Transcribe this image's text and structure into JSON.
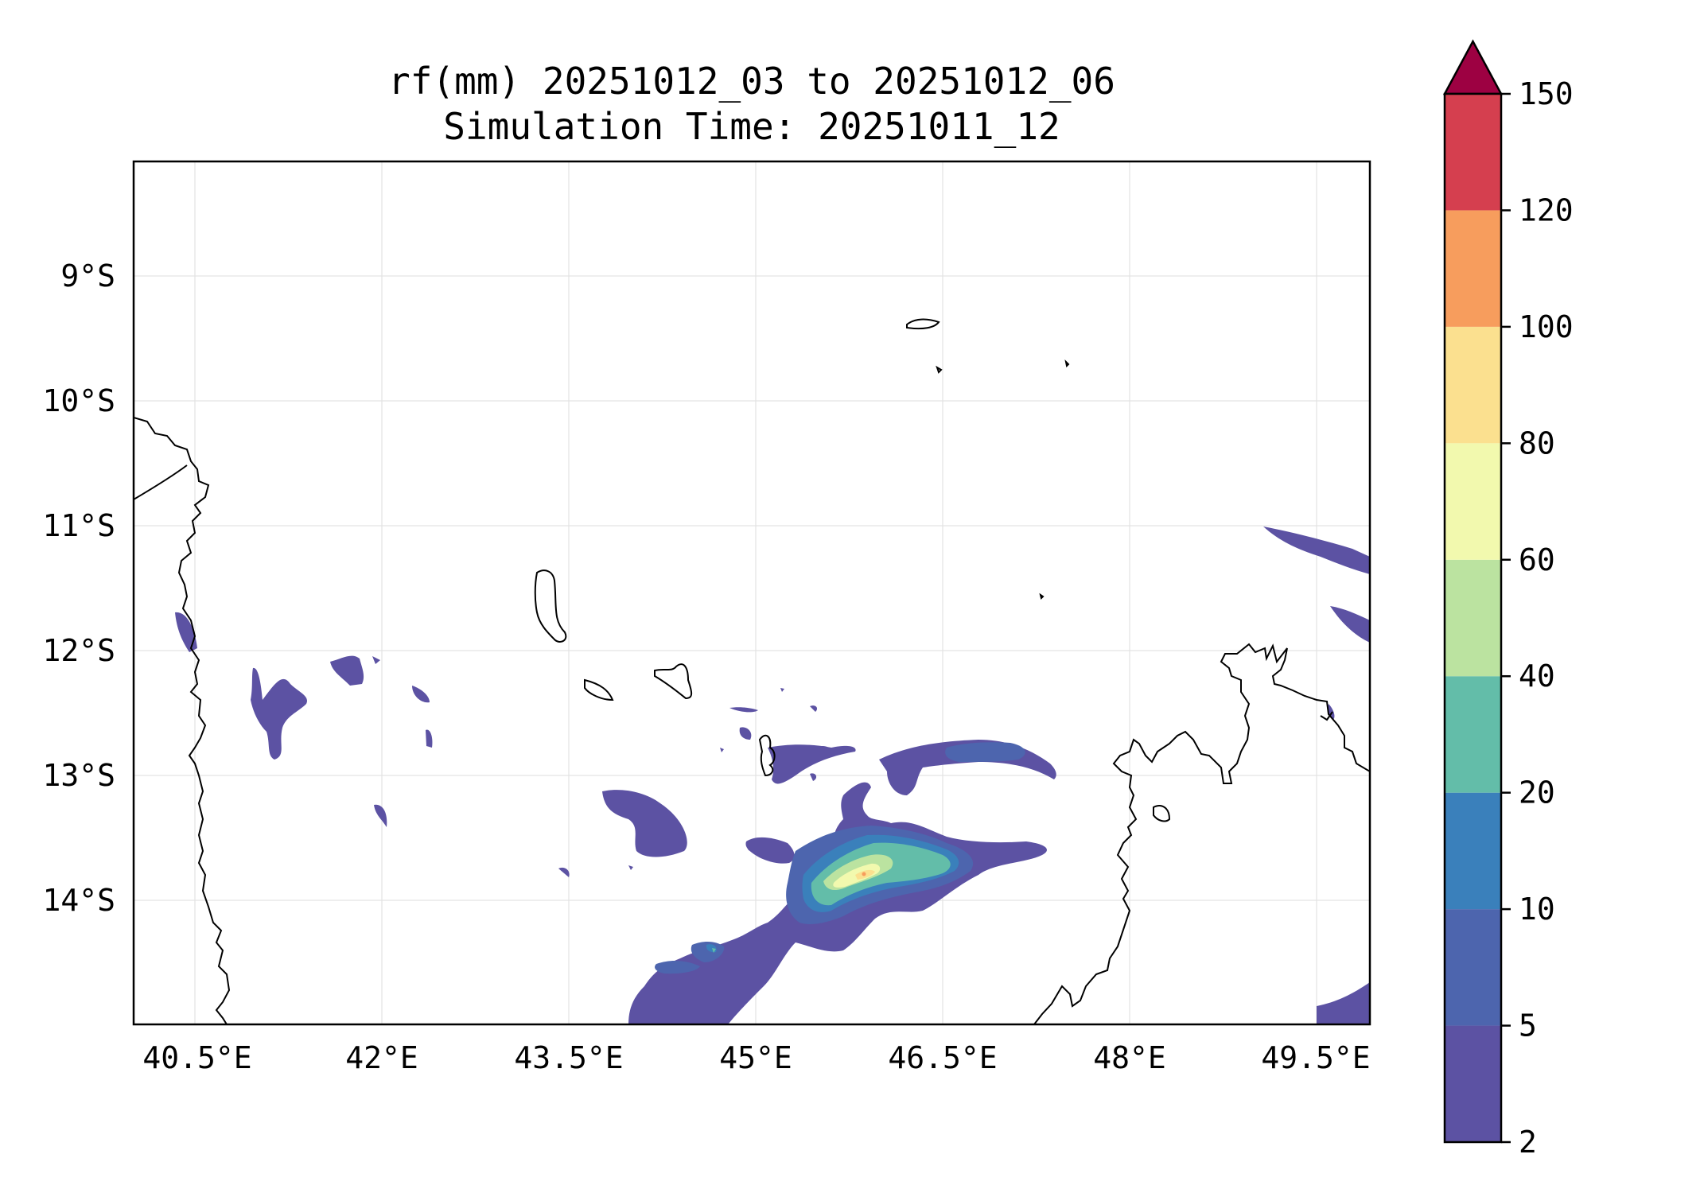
{
  "title": {
    "line1": "rf(mm) 20251012_03 to 20251012_06",
    "line2": "Simulation Time: 20251011_12"
  },
  "map": {
    "lon_range": [
      40.0,
      49.9
    ],
    "lat_range": [
      -15.0,
      -8.1
    ],
    "x_ticks": [
      "40.5°E",
      "42°E",
      "43.5°E",
      "45°E",
      "46.5°E",
      "48°E",
      "49.5°E"
    ],
    "y_ticks": [
      "9°S",
      "10°S",
      "11°S",
      "12°S",
      "13°S",
      "14°S"
    ],
    "grid": true,
    "max_rainfall_region": "near 46.3°E, 13.8°S"
  },
  "colorbar": {
    "levels": [
      "2",
      "5",
      "10",
      "20",
      "40",
      "60",
      "80",
      "100",
      "120",
      "150"
    ],
    "colors": [
      "#5c52a3",
      "#4d65ae",
      "#3a80bb",
      "#63bda9",
      "#bbe3a0",
      "#f2f9ae",
      "#fbe08f",
      "#f79d5d",
      "#d53f4f"
    ],
    "extend_color": "#9d0142",
    "extend": "max"
  }
}
